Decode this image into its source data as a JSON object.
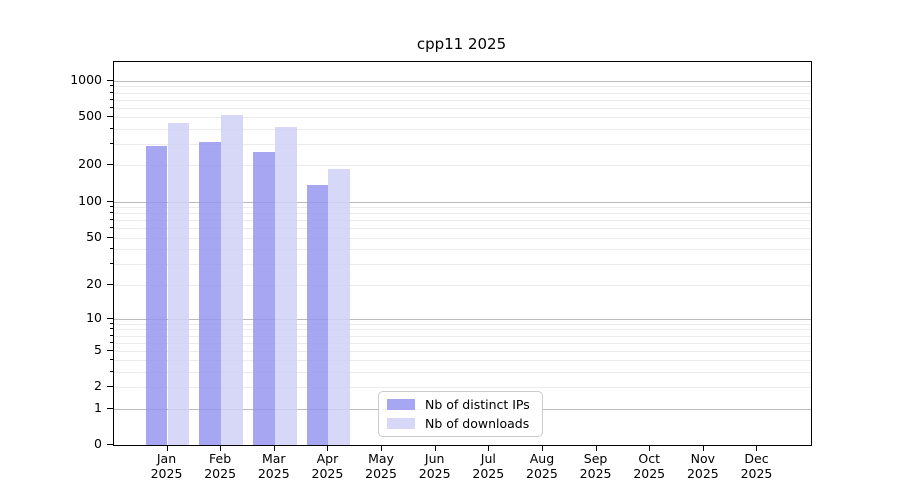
{
  "chart_data": {
    "type": "bar",
    "title": "cpp11 2025",
    "x_categories": [
      "Jan",
      "Feb",
      "Mar",
      "Apr",
      "May",
      "Jun",
      "Jul",
      "Aug",
      "Sep",
      "Oct",
      "Nov",
      "Dec"
    ],
    "x_year": "2025",
    "y_ticks": [
      0,
      1,
      2,
      5,
      10,
      20,
      50,
      100,
      200,
      500,
      1000
    ],
    "y_scale": "log1p",
    "ylim": [
      0,
      1430
    ],
    "grid": true,
    "legend_position": "bottom-center-inside",
    "series": [
      {
        "name": "Nb of distinct IPs",
        "color": "rgba(146,146,240,0.82)",
        "values": [
          290,
          310,
          256,
          138,
          null,
          null,
          null,
          null,
          null,
          null,
          null,
          null
        ]
      },
      {
        "name": "Nb of downloads",
        "color": "rgba(208,208,247,0.85)",
        "values": [
          450,
          520,
          414,
          186,
          null,
          null,
          null,
          null,
          null,
          null,
          null,
          null
        ]
      }
    ]
  },
  "colors": {
    "grid_major": "#bbbbbb",
    "grid_minor": "#ebebeb",
    "axis": "#000000",
    "legend_border": "#cccccc",
    "background": "#ffffff"
  }
}
